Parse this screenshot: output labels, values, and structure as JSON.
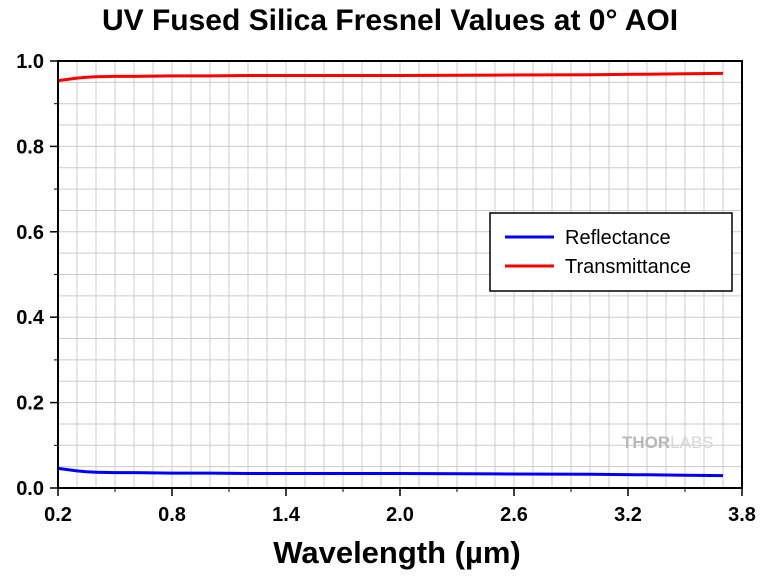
{
  "chart_data": {
    "type": "line",
    "title": "UV Fused Silica Fresnel Values at 0° AOI",
    "xlabel": "Wavelength (µm)",
    "ylabel": "",
    "xlim": [
      0.2,
      3.8
    ],
    "ylim": [
      0.0,
      1.0
    ],
    "x_ticks": [
      "0.2",
      "0.8",
      "1.4",
      "2.0",
      "2.6",
      "3.2",
      "3.8"
    ],
    "y_ticks": [
      "0.0",
      "0.2",
      "0.4",
      "0.6",
      "0.8",
      "1.0"
    ],
    "x_tick_values": [
      0.2,
      0.8,
      1.4,
      2.0,
      2.6,
      3.2,
      3.8
    ],
    "y_tick_values": [
      0.0,
      0.2,
      0.4,
      0.6,
      0.8,
      1.0
    ],
    "grid": true,
    "legend_position": "right-center",
    "series": [
      {
        "name": "Reflectance",
        "color": "#0000ff",
        "x": [
          0.2,
          0.25,
          0.3,
          0.35,
          0.4,
          0.5,
          0.6,
          0.8,
          1.0,
          1.2,
          1.5,
          2.0,
          2.5,
          3.0,
          3.3,
          3.5,
          3.7
        ],
        "y": [
          0.046,
          0.043,
          0.04,
          0.038,
          0.037,
          0.036,
          0.036,
          0.035,
          0.035,
          0.034,
          0.034,
          0.034,
          0.033,
          0.032,
          0.031,
          0.03,
          0.029
        ]
      },
      {
        "name": "Transmittance",
        "color": "#ff0000",
        "x": [
          0.2,
          0.25,
          0.3,
          0.35,
          0.4,
          0.5,
          0.6,
          0.8,
          1.0,
          1.2,
          1.5,
          2.0,
          2.5,
          3.0,
          3.3,
          3.5,
          3.7
        ],
        "y": [
          0.954,
          0.957,
          0.96,
          0.962,
          0.963,
          0.964,
          0.964,
          0.965,
          0.965,
          0.966,
          0.966,
          0.966,
          0.967,
          0.968,
          0.969,
          0.97,
          0.971
        ]
      }
    ]
  },
  "watermark": {
    "part1": "THOR",
    "part2": "LABS"
  }
}
